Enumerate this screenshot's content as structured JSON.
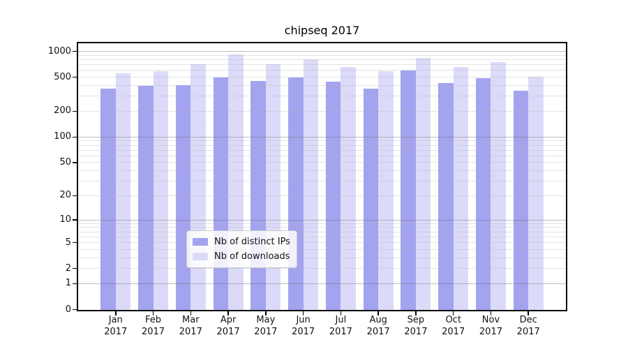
{
  "chart_data": {
    "type": "bar",
    "title": "chipseq 2017",
    "categories": [
      "Jan",
      "Feb",
      "Mar",
      "Apr",
      "May",
      "Jun",
      "Jul",
      "Aug",
      "Sep",
      "Oct",
      "Nov",
      "Dec"
    ],
    "x_year_label": "2017",
    "series": [
      {
        "name": "Nb of distinct IPs",
        "color": "#a3a3f0",
        "values": [
          365,
          400,
          405,
          500,
          450,
          500,
          440,
          365,
          595,
          430,
          485,
          345
        ]
      },
      {
        "name": "Nb of downloads",
        "color": "#dbdbf9",
        "values": [
          555,
          590,
          710,
          925,
          710,
          805,
          655,
          590,
          835,
          660,
          755,
          505
        ]
      }
    ],
    "yaxis": {
      "scale": "log1p",
      "min": 0,
      "max": 1240,
      "tick_values": [
        0,
        1,
        2,
        5,
        10,
        20,
        50,
        100,
        200,
        500,
        1000
      ],
      "major_grid_values": [
        1,
        10,
        100,
        1000
      ],
      "minor_grid_subs": [
        2,
        3,
        4,
        5,
        6,
        7,
        8,
        9
      ],
      "minor_grid_decades": [
        1,
        10,
        100
      ]
    },
    "legend": {
      "position": "bottom-center",
      "entries": [
        "Nb of distinct IPs",
        "Nb of downloads"
      ]
    },
    "grid": true
  },
  "colors": {
    "background": "#ffffff",
    "axis": "#000000",
    "text": "#111111",
    "major_grid": "rgba(110,110,110,0.45)",
    "minor_grid": "rgba(178,178,178,0.35)",
    "legend_border": "#cccccc"
  }
}
